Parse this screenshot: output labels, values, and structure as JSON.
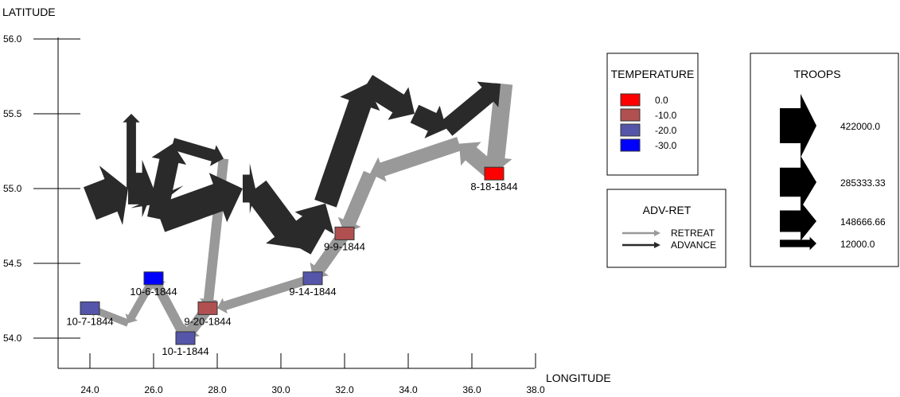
{
  "chart_data": {
    "type": "line",
    "ylabel": "LATITUDE",
    "xlabel": "LONGITUDE",
    "xlim": [
      22.0,
      38.0
    ],
    "ylim": [
      53.8,
      56.2
    ],
    "x_ticks": [
      "24.0",
      "26.0",
      "28.0",
      "30.0",
      "32.0",
      "34.0",
      "36.0",
      "38.0"
    ],
    "y_ticks": [
      "54.0",
      "54.5",
      "55.0",
      "55.5",
      "56.0"
    ],
    "grid": false,
    "colors": {
      "advance": "#2a2a2a",
      "retreat": "#999999",
      "temp_0": "#ff0000",
      "temp_-10": "#b05050",
      "temp_-20": "#5555aa",
      "temp_-30": "#0000ff"
    },
    "series": [
      {
        "name": "ADVANCE",
        "segments": [
          {
            "from": [
              24.0,
              54.9
            ],
            "to": [
              25.2,
              55.0
            ],
            "troops": 422000
          },
          {
            "from": [
              25.2,
              55.0
            ],
            "to": [
              26.0,
              55.0
            ],
            "troops": 340000
          },
          {
            "from": [
              26.0,
              55.0
            ],
            "to": [
              26.2,
              54.9
            ],
            "troops": 340000
          },
          {
            "from": [
              25.3,
              55.0
            ],
            "to": [
              25.3,
              55.5
            ],
            "troops": 22000
          },
          {
            "from": [
              26.1,
              54.8
            ],
            "to": [
              26.6,
              55.3
            ],
            "troops": 120000
          },
          {
            "from": [
              26.6,
              55.3
            ],
            "to": [
              28.2,
              55.2
            ],
            "troops": 40000
          },
          {
            "from": [
              26.2,
              54.8
            ],
            "to": [
              28.8,
              55.0
            ],
            "troops": 280000
          },
          {
            "from": [
              28.8,
              55.0
            ],
            "to": [
              29.2,
              55.0
            ],
            "troops": 260000
          },
          {
            "from": [
              29.2,
              55.0
            ],
            "to": [
              30.6,
              54.6
            ],
            "troops": 240000
          },
          {
            "from": [
              30.6,
              54.6
            ],
            "to": [
              31.4,
              54.9
            ],
            "troops": 200000
          },
          {
            "from": [
              31.4,
              54.9
            ],
            "to": [
              32.7,
              55.7
            ],
            "troops": 175000
          },
          {
            "from": [
              32.7,
              55.7
            ],
            "to": [
              34.2,
              55.5
            ],
            "troops": 145000
          },
          {
            "from": [
              34.2,
              55.5
            ],
            "to": [
              35.2,
              55.4
            ],
            "troops": 125000
          },
          {
            "from": [
              35.2,
              55.4
            ],
            "to": [
              36.9,
              55.7
            ],
            "troops": 105000
          }
        ]
      },
      {
        "name": "RETREAT",
        "segments": [
          {
            "from": [
              37.0,
              55.7
            ],
            "to": [
              36.7,
              55.1
            ],
            "troops": 100000
          },
          {
            "from": [
              36.7,
              55.1
            ],
            "to": [
              35.6,
              55.3
            ],
            "troops": 90000
          },
          {
            "from": [
              35.6,
              55.3
            ],
            "to": [
              32.8,
              55.1
            ],
            "troops": 60000
          },
          {
            "from": [
              32.8,
              55.1
            ],
            "to": [
              32.0,
              54.7
            ],
            "troops": 55000
          },
          {
            "from": [
              32.0,
              54.7
            ],
            "to": [
              31.0,
              54.4
            ],
            "troops": 45000
          },
          {
            "from": [
              31.0,
              54.4
            ],
            "to": [
              28.0,
              54.2
            ],
            "troops": 20000
          },
          {
            "from": [
              28.2,
              55.2
            ],
            "to": [
              27.7,
              54.2
            ],
            "troops": 25000
          },
          {
            "from": [
              27.7,
              54.2
            ],
            "to": [
              27.0,
              54.0
            ],
            "troops": 35000
          },
          {
            "from": [
              27.0,
              54.0
            ],
            "to": [
              26.0,
              54.4
            ],
            "troops": 25000
          },
          {
            "from": [
              26.0,
              54.4
            ],
            "to": [
              25.2,
              54.1
            ],
            "troops": 14000
          },
          {
            "from": [
              25.2,
              54.1
            ],
            "to": [
              24.0,
              54.2
            ],
            "troops": 12000
          }
        ]
      }
    ],
    "temperature_points": [
      {
        "x": 36.7,
        "y": 55.1,
        "label": "8-18-1844",
        "temp": 0.0
      },
      {
        "x": 32.0,
        "y": 54.7,
        "label": "9-9-1844",
        "temp": -10.0
      },
      {
        "x": 31.0,
        "y": 54.4,
        "label": "9-14-1844",
        "temp": -20.0
      },
      {
        "x": 27.7,
        "y": 54.2,
        "label": "9-20-1844",
        "temp": -10.0
      },
      {
        "x": 27.0,
        "y": 54.0,
        "label": "10-1-1844",
        "temp": -20.0
      },
      {
        "x": 26.0,
        "y": 54.4,
        "label": "10-6-1844",
        "temp": -30.0
      },
      {
        "x": 24.0,
        "y": 54.2,
        "label": "10-7-1844",
        "temp": -20.0
      }
    ],
    "legends": {
      "temperature": {
        "title": "TEMPERATURE",
        "entries": [
          {
            "label": "0.0",
            "color": "#ff0000"
          },
          {
            "label": "-10.0",
            "color": "#b05050"
          },
          {
            "label": "-20.0",
            "color": "#5555aa"
          },
          {
            "label": "-30.0",
            "color": "#0000ff"
          }
        ]
      },
      "adv_ret": {
        "title": "ADV-RET",
        "entries": [
          {
            "label": "RETREAT",
            "color": "#999999"
          },
          {
            "label": "ADVANCE",
            "color": "#2a2a2a"
          }
        ]
      },
      "troops": {
        "title": "TROOPS",
        "entries": [
          {
            "label": "422000.0",
            "value": 422000
          },
          {
            "label": "285333.33",
            "value": 285333.33
          },
          {
            "label": "148666.66",
            "value": 148666.66
          },
          {
            "label": "12000.0",
            "value": 12000
          }
        ]
      }
    }
  }
}
